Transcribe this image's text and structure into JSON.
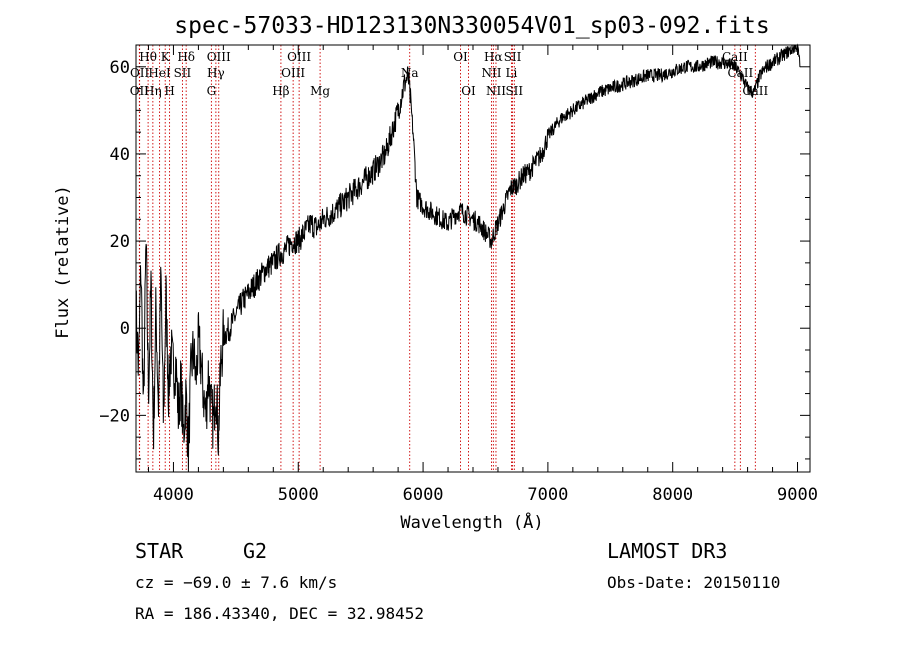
{
  "chart_data": {
    "type": "line",
    "title": "spec-57033-HD123130N330054V01_sp03-092.fits",
    "xlabel": "Wavelength (Å)",
    "ylabel": "Flux (relative)",
    "xlim": [
      3700,
      9100
    ],
    "ylim": [
      -33,
      65
    ],
    "xticks": [
      4000,
      5000,
      6000,
      7000,
      8000,
      9000
    ],
    "yticks": [
      -20,
      0,
      20,
      40,
      60
    ],
    "xtick_labels": [
      "4000",
      "5000",
      "6000",
      "7000",
      "8000",
      "9000"
    ],
    "ytick_labels": [
      "−20",
      "0",
      "20",
      "40",
      "60"
    ],
    "grid": false,
    "series": [
      {
        "name": "flux",
        "x": [
          3700,
          3720,
          3740,
          3760,
          3780,
          3800,
          3820,
          3840,
          3860,
          3880,
          3900,
          3920,
          3940,
          3960,
          3980,
          4000,
          4020,
          4040,
          4060,
          4080,
          4100,
          4120,
          4140,
          4160,
          4180,
          4200,
          4220,
          4240,
          4260,
          4280,
          4300,
          4320,
          4340,
          4360,
          4380,
          4400,
          4450,
          4500,
          4550,
          4600,
          4650,
          4700,
          4750,
          4800,
          4850,
          4900,
          4950,
          5000,
          5050,
          5100,
          5150,
          5200,
          5300,
          5400,
          5500,
          5600,
          5700,
          5750,
          5800,
          5850,
          5880,
          5900,
          5920,
          5950,
          6000,
          6050,
          6100,
          6150,
          6200,
          6250,
          6300,
          6350,
          6400,
          6450,
          6500,
          6550,
          6570,
          6600,
          6650,
          6700,
          6750,
          6800,
          6850,
          6900,
          6950,
          7000,
          7100,
          7200,
          7300,
          7400,
          7500,
          7600,
          7700,
          7800,
          7900,
          8000,
          8100,
          8200,
          8300,
          8400,
          8500,
          8550,
          8600,
          8650,
          8700,
          8750,
          8800,
          8850,
          8900,
          8950,
          9000,
          9020
        ],
        "y": [
          5,
          -10,
          15,
          -20,
          20,
          -15,
          10,
          -25,
          5,
          -18,
          12,
          -22,
          8,
          -15,
          -5,
          -10,
          -8,
          -20,
          -12,
          -25,
          -15,
          -28,
          -10,
          -5,
          -12,
          -3,
          -8,
          -15,
          -20,
          -10,
          -18,
          -22,
          -12,
          -25,
          -8,
          -2,
          0,
          3,
          6,
          8,
          10,
          12,
          14,
          15,
          17,
          18,
          20,
          20,
          22,
          24,
          23,
          25,
          27,
          30,
          33,
          36,
          40,
          45,
          50,
          56,
          58,
          52,
          45,
          30,
          28,
          27,
          26,
          25,
          24,
          26,
          27,
          26,
          25,
          24,
          22,
          20,
          22,
          24,
          28,
          32,
          33,
          35,
          36,
          38,
          40,
          44,
          48,
          50,
          52,
          54,
          55,
          56,
          57,
          58,
          58,
          59,
          60,
          60,
          61,
          61,
          60,
          58,
          55,
          54,
          58,
          60,
          61,
          62,
          63,
          64,
          65,
          60
        ]
      }
    ],
    "line_annotations": [
      {
        "label": "Hθ",
        "x": 3797,
        "row": 1
      },
      {
        "label": "OII",
        "x": 3727,
        "row": 3
      },
      {
        "label": "OII",
        "x": 3729,
        "row": 2
      },
      {
        "label": "Hη",
        "x": 3835,
        "row": 3
      },
      {
        "label": "HeI",
        "x": 3889,
        "row": 2
      },
      {
        "label": "K",
        "x": 3934,
        "row": 1
      },
      {
        "label": "H",
        "x": 3969,
        "row": 3
      },
      {
        "label": "SII",
        "x": 4072,
        "row": 2
      },
      {
        "label": "Hδ",
        "x": 4102,
        "row": 1
      },
      {
        "label": "OIII",
        "x": 4363,
        "row": 1
      },
      {
        "label": "Hγ",
        "x": 4340,
        "row": 2
      },
      {
        "label": "G",
        "x": 4304,
        "row": 3
      },
      {
        "label": "Hβ",
        "x": 4861,
        "row": 3
      },
      {
        "label": "OIII",
        "x": 4959,
        "row": 2
      },
      {
        "label": "OIII",
        "x": 5007,
        "row": 1
      },
      {
        "label": "Mg",
        "x": 5175,
        "row": 3
      },
      {
        "label": "Na",
        "x": 5893,
        "row": 2
      },
      {
        "label": "OI",
        "x": 6300,
        "row": 1
      },
      {
        "label": "OI",
        "x": 6364,
        "row": 3
      },
      {
        "label": "Hα",
        "x": 6563,
        "row": 1
      },
      {
        "label": "NII",
        "x": 6548,
        "row": 2
      },
      {
        "label": "NII",
        "x": 6584,
        "row": 3
      },
      {
        "label": "Li",
        "x": 6708,
        "row": 2
      },
      {
        "label": "SII",
        "x": 6717,
        "row": 1
      },
      {
        "label": "SII",
        "x": 6731,
        "row": 3
      },
      {
        "label": "CaII",
        "x": 8498,
        "row": 1
      },
      {
        "label": "CaII",
        "x": 8542,
        "row": 2
      },
      {
        "label": "CaII",
        "x": 8662,
        "row": 3
      }
    ]
  },
  "info": {
    "class_label": "STAR",
    "subclass": "G2",
    "survey": "LAMOST DR3",
    "cz_text": "cz = −69.0 ± 7.6 km/s",
    "obs_date_text": "Obs-Date: 20150110",
    "radec_text": "RA = 186.43340, DEC =  32.98452"
  },
  "colors": {
    "line": "#000000",
    "marker_lines": "#cc0000",
    "axes": "#000000",
    "background": "#ffffff"
  }
}
